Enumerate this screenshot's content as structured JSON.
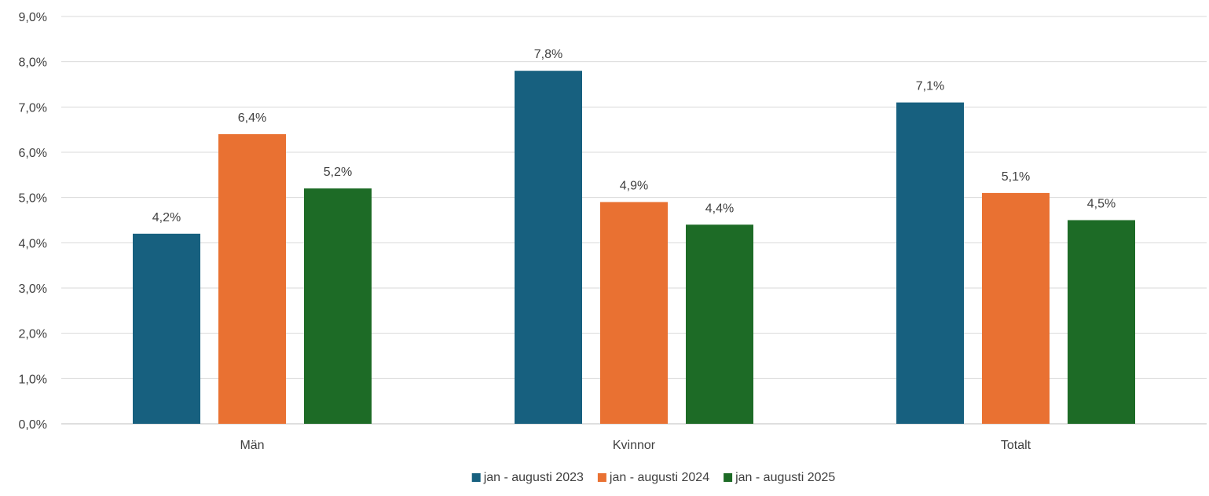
{
  "chart_data": {
    "type": "bar",
    "title": "",
    "xlabel": "",
    "ylabel": "",
    "categories": [
      "Män",
      "Kvinnor",
      "Totalt"
    ],
    "series": [
      {
        "name": "jan - augusti 2023",
        "color": "#17607f",
        "values": [
          4.2,
          7.8,
          7.1
        ],
        "labels": [
          "4,2%",
          "7,8%",
          "7,1%"
        ]
      },
      {
        "name": "jan - augusti 2024",
        "color": "#e97132",
        "values": [
          6.4,
          4.9,
          5.1
        ],
        "labels": [
          "6,4%",
          "4,9%",
          "5,1%"
        ]
      },
      {
        "name": "jan - augusti 2025",
        "color": "#1d6b26",
        "values": [
          5.2,
          4.4,
          4.5
        ],
        "labels": [
          "5,2%",
          "4,4%",
          "4,5%"
        ]
      }
    ],
    "ylim": [
      0,
      9
    ],
    "y_ticks": [
      0,
      1,
      2,
      3,
      4,
      5,
      6,
      7,
      8,
      9
    ],
    "y_tick_labels": [
      "0,0%",
      "1,0%",
      "2,0%",
      "3,0%",
      "4,0%",
      "5,0%",
      "6,0%",
      "7,0%",
      "8,0%",
      "9,0%"
    ],
    "grid": true,
    "legend_position": "bottom"
  }
}
